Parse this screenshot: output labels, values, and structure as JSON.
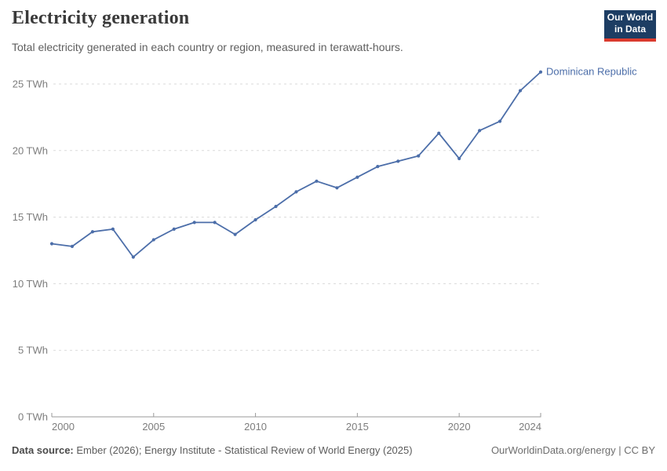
{
  "header": {
    "title": "Electricity generation",
    "subtitle": "Total electricity generated in each country or region, measured in terawatt-hours.",
    "logo_line1": "Our World",
    "logo_line2": "in Data"
  },
  "chart_data": {
    "type": "line",
    "title": "Electricity generation",
    "subtitle": "Total electricity generated in each country or region, measured in terawatt-hours.",
    "unit": "TWh",
    "x": [
      2000,
      2001,
      2002,
      2003,
      2004,
      2005,
      2006,
      2007,
      2008,
      2009,
      2010,
      2011,
      2012,
      2013,
      2014,
      2015,
      2016,
      2017,
      2018,
      2019,
      2020,
      2021,
      2022,
      2023,
      2024
    ],
    "series": [
      {
        "name": "Dominican Republic",
        "color": "#4c6ea9",
        "values": [
          13.0,
          12.8,
          13.9,
          14.1,
          12.0,
          13.3,
          14.1,
          14.6,
          14.6,
          13.7,
          14.8,
          15.8,
          16.9,
          17.7,
          17.2,
          18.0,
          18.8,
          19.2,
          19.6,
          21.3,
          19.4,
          21.5,
          22.2,
          24.5,
          25.9
        ]
      }
    ],
    "xlim": [
      2000,
      2024
    ],
    "ylim": [
      0,
      25
    ],
    "x_ticks": [
      2000,
      2005,
      2010,
      2015,
      2020,
      2024
    ],
    "x_tick_labels": [
      "2000",
      "2005",
      "2010",
      "2015",
      "2020",
      "2024"
    ],
    "y_ticks": [
      0,
      5,
      10,
      15,
      20,
      25
    ],
    "y_tick_labels": [
      "0 TWh",
      "5 TWh",
      "10 TWh",
      "15 TWh",
      "20 TWh",
      "25 TWh"
    ],
    "grid": "horizontal-dashed",
    "legend": "line-end-label"
  },
  "footer": {
    "source_label": "Data source:",
    "source_text": " Ember (2026); Energy Institute - Statistical Review of World Energy (2025)",
    "rights": "OurWorldinData.org/energy | CC BY"
  },
  "colors": {
    "line": "#4c6ea9",
    "grid": "#dadada",
    "axis": "#9a9a9a",
    "tick_label": "#7d7d7d",
    "logo_bg": "#1d3d63",
    "logo_stripe": "#dc3b2e"
  }
}
